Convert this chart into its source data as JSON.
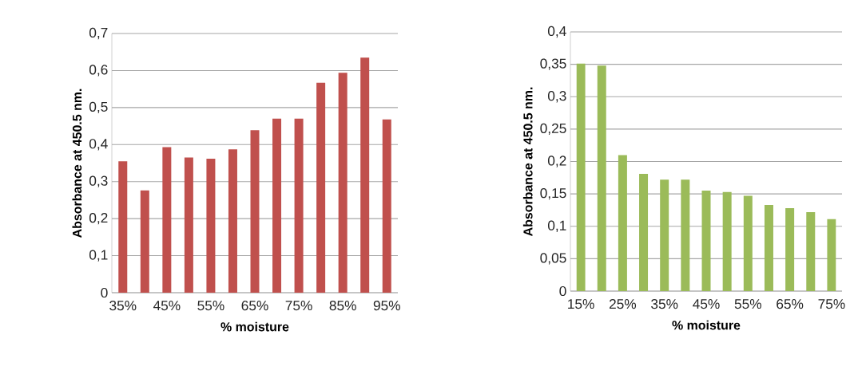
{
  "chart_data": [
    {
      "type": "bar",
      "xlabel": "% moisture",
      "ylabel": "Absorbance at 450.5 nm.",
      "categories": [
        "35%",
        null,
        "45%",
        null,
        "55%",
        null,
        "65%",
        null,
        "75%",
        null,
        "85%",
        null,
        "95%"
      ],
      "values": [
        0.355,
        0.276,
        0.393,
        0.365,
        0.362,
        0.387,
        0.439,
        0.47,
        0.47,
        0.567,
        0.594,
        0.635,
        0.468
      ],
      "color": "#c0504d",
      "ylim": [
        0,
        0.7
      ],
      "yticks": [
        0,
        {
          "value": 0.1,
          "label": "0,1"
        },
        {
          "value": 0.2,
          "label": "0,2"
        },
        {
          "value": 0.3,
          "label": "0,3"
        },
        {
          "value": 0.4,
          "label": "0,4"
        },
        {
          "value": 0.5,
          "label": "0,5"
        },
        {
          "value": 0.6,
          "label": "0,6"
        },
        {
          "value": 0.7,
          "label": "0,7"
        }
      ],
      "grid": "y"
    },
    {
      "type": "bar",
      "xlabel": "% moisture",
      "ylabel": "Absorbance at 450.5 nm.",
      "categories": [
        "15%",
        null,
        "25%",
        null,
        "35%",
        null,
        "45%",
        null,
        "55%",
        null,
        "65%",
        null,
        "75%"
      ],
      "values": [
        0.351,
        0.348,
        0.21,
        0.181,
        0.172,
        0.172,
        0.155,
        0.153,
        0.147,
        0.133,
        0.128,
        0.122,
        0.111
      ],
      "color": "#9bbb59",
      "ylim": [
        0,
        0.4
      ],
      "yticks": [
        0,
        {
          "value": 0.05,
          "label": "0,05"
        },
        {
          "value": 0.1,
          "label": "0,1"
        },
        {
          "value": 0.15,
          "label": "0,15"
        },
        {
          "value": 0.2,
          "label": "0,2"
        },
        {
          "value": 0.25,
          "label": "0,25"
        },
        {
          "value": 0.3,
          "label": "0,3"
        },
        {
          "value": 0.35,
          "label": "0,35"
        },
        {
          "value": 0.4,
          "label": "0,4"
        }
      ],
      "grid": "y"
    }
  ]
}
